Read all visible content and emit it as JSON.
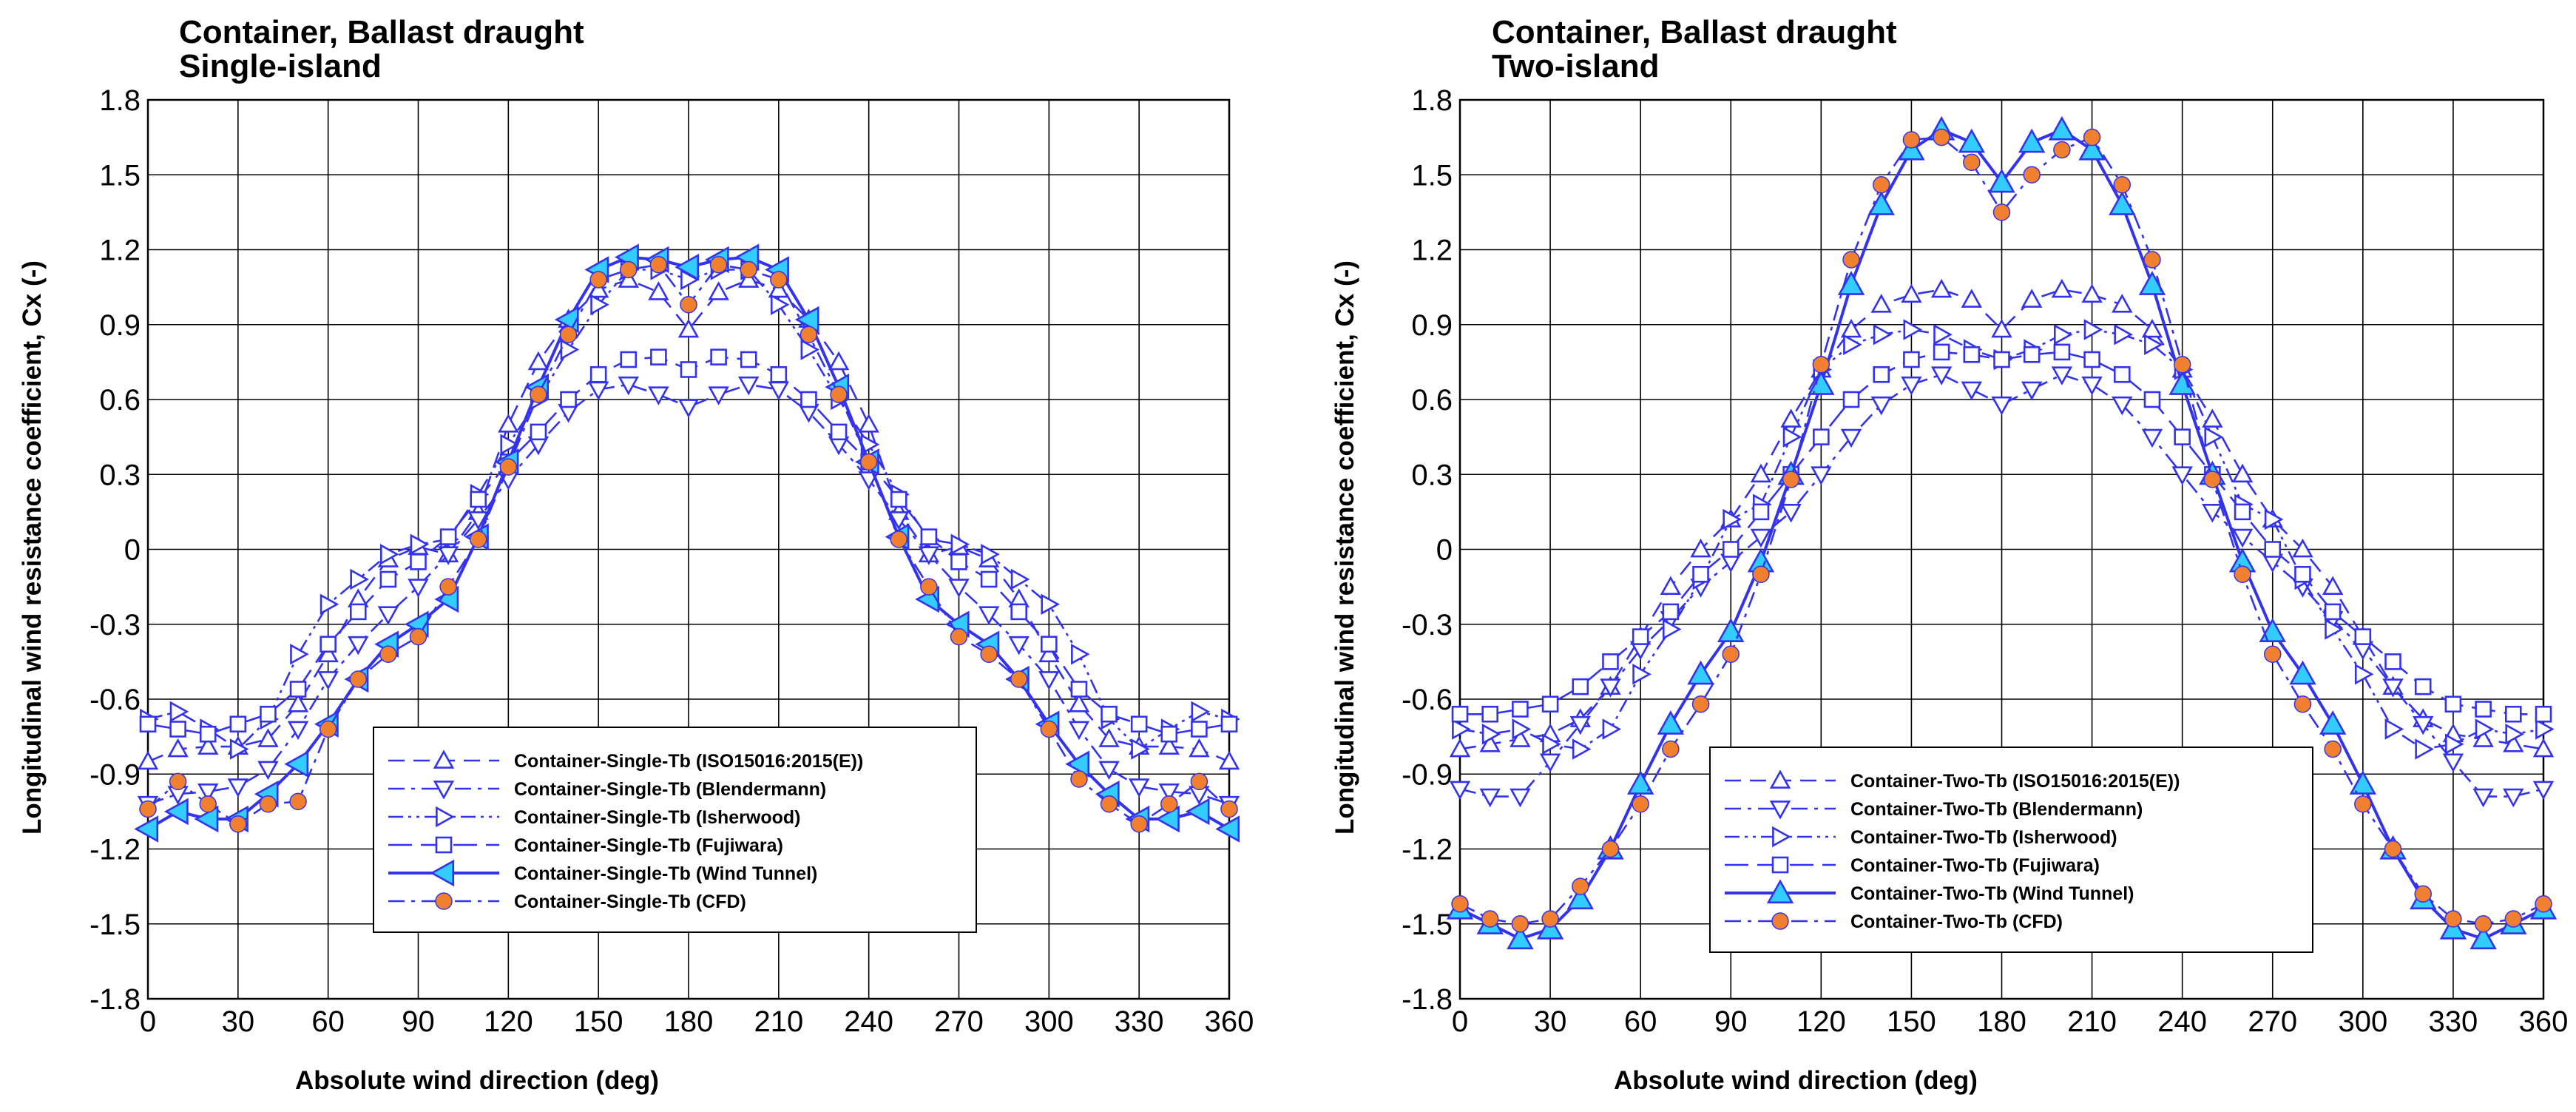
{
  "colors": {
    "series": "#3333ee",
    "cfd_marker": "#f08030",
    "wind_marker": "#33ccff",
    "grid": "#000000"
  },
  "chart_data": [
    {
      "type": "line",
      "title_line1": "Container, Ballast draught",
      "title_line2": "Single-island",
      "xlabel": "Absolute wind direction (deg)",
      "ylabel": "Longitudinal wind resistance coefficient, Cx (-)",
      "xlim": [
        0,
        360
      ],
      "ylim": [
        -1.8,
        1.8
      ],
      "xticks": [
        "0",
        "30",
        "60",
        "90",
        "120",
        "150",
        "180",
        "210",
        "240",
        "270",
        "300",
        "330",
        "360"
      ],
      "yticks": [
        "1.8",
        "1.5",
        "1.2",
        "0.9",
        "0.6",
        "0.3",
        "0",
        "-0.3",
        "-0.6",
        "-0.9",
        "-1.2",
        "-1.5",
        "-1.8"
      ],
      "legend_position": "bottom-center",
      "series": [
        {
          "name": "Container-Single-Tb (ISO15016:2015(E))",
          "marker": "triangle-up",
          "dash": "dashed",
          "x": [
            0,
            10,
            20,
            30,
            40,
            50,
            60,
            70,
            80,
            90,
            100,
            110,
            120,
            130,
            140,
            150,
            160,
            170,
            180,
            190,
            200,
            210,
            220,
            230,
            240,
            250,
            260,
            270,
            280,
            290,
            300,
            310,
            320,
            330,
            340,
            350,
            360
          ],
          "y": [
            -0.85,
            -0.8,
            -0.79,
            -0.79,
            -0.76,
            -0.62,
            -0.42,
            -0.2,
            -0.04,
            0.01,
            -0.02,
            0.15,
            0.5,
            0.75,
            0.92,
            1.04,
            1.08,
            1.03,
            0.88,
            1.03,
            1.08,
            1.04,
            0.92,
            0.75,
            0.5,
            0.15,
            -0.02,
            0.01,
            -0.04,
            -0.2,
            -0.42,
            -0.62,
            -0.76,
            -0.79,
            -0.79,
            -0.8,
            -0.85
          ]
        },
        {
          "name": "Container-Single-Tb (Blendermann)",
          "marker": "triangle-down",
          "dash": "dashdot",
          "x": [
            0,
            10,
            20,
            30,
            40,
            50,
            60,
            70,
            80,
            90,
            100,
            110,
            120,
            130,
            140,
            150,
            160,
            170,
            180,
            190,
            200,
            210,
            220,
            230,
            240,
            250,
            260,
            270,
            280,
            290,
            300,
            310,
            320,
            330,
            340,
            350,
            360
          ],
          "y": [
            -1.02,
            -0.98,
            -0.97,
            -0.95,
            -0.88,
            -0.72,
            -0.52,
            -0.38,
            -0.26,
            -0.15,
            -0.02,
            0.12,
            0.28,
            0.42,
            0.55,
            0.64,
            0.66,
            0.62,
            0.57,
            0.62,
            0.66,
            0.64,
            0.55,
            0.42,
            0.28,
            0.12,
            -0.02,
            -0.15,
            -0.26,
            -0.38,
            -0.52,
            -0.72,
            -0.88,
            -0.95,
            -0.97,
            -0.98,
            -1.02
          ]
        },
        {
          "name": "Container-Single-Tb (Isherwood)",
          "marker": "triangle-right",
          "dash": "dashdotdot",
          "x": [
            0,
            10,
            20,
            30,
            40,
            50,
            60,
            70,
            80,
            90,
            100,
            110,
            120,
            130,
            140,
            150,
            160,
            170,
            180,
            190,
            200,
            210,
            220,
            230,
            240,
            250,
            260,
            270,
            280,
            290,
            300,
            310,
            320,
            330,
            340,
            350,
            360
          ],
          "y": [
            -0.68,
            -0.65,
            -0.72,
            -0.8,
            -0.68,
            -0.42,
            -0.22,
            -0.12,
            -0.02,
            0.02,
            0.04,
            0.22,
            0.42,
            0.6,
            0.8,
            0.98,
            1.12,
            1.12,
            1.08,
            1.12,
            1.12,
            0.98,
            0.8,
            0.6,
            0.42,
            0.22,
            0.04,
            0.02,
            -0.02,
            -0.12,
            -0.22,
            -0.42,
            -0.68,
            -0.8,
            -0.72,
            -0.65,
            -0.68
          ]
        },
        {
          "name": "Container-Single-Tb (Fujiwara)",
          "marker": "square",
          "dash": "longdash",
          "x": [
            0,
            10,
            20,
            30,
            40,
            50,
            60,
            70,
            80,
            90,
            100,
            110,
            120,
            130,
            140,
            150,
            160,
            170,
            180,
            190,
            200,
            210,
            220,
            230,
            240,
            250,
            260,
            270,
            280,
            290,
            300,
            310,
            320,
            330,
            340,
            350,
            360
          ],
          "y": [
            -0.7,
            -0.72,
            -0.74,
            -0.7,
            -0.66,
            -0.56,
            -0.38,
            -0.25,
            -0.12,
            -0.05,
            0.05,
            0.2,
            0.35,
            0.47,
            0.6,
            0.7,
            0.76,
            0.77,
            0.72,
            0.77,
            0.76,
            0.7,
            0.6,
            0.47,
            0.35,
            0.2,
            0.05,
            -0.05,
            -0.12,
            -0.25,
            -0.38,
            -0.56,
            -0.66,
            -0.7,
            -0.74,
            -0.72,
            -0.7
          ]
        },
        {
          "name": "Container-Single-Tb (Wind Tunnel)",
          "marker": "triangle-left",
          "dash": "solid",
          "x": [
            0,
            10,
            20,
            30,
            40,
            50,
            60,
            70,
            80,
            90,
            100,
            110,
            120,
            130,
            140,
            150,
            160,
            170,
            180,
            190,
            200,
            210,
            220,
            230,
            240,
            250,
            260,
            270,
            280,
            290,
            300,
            310,
            320,
            330,
            340,
            350,
            360
          ],
          "y": [
            -1.12,
            -1.05,
            -1.08,
            -1.08,
            -0.98,
            -0.86,
            -0.7,
            -0.52,
            -0.38,
            -0.3,
            -0.2,
            0.05,
            0.35,
            0.65,
            0.92,
            1.12,
            1.17,
            1.16,
            1.13,
            1.16,
            1.17,
            1.12,
            0.92,
            0.65,
            0.35,
            0.05,
            -0.2,
            -0.3,
            -0.38,
            -0.52,
            -0.7,
            -0.86,
            -0.98,
            -1.08,
            -1.08,
            -1.05,
            -1.12
          ]
        },
        {
          "name": "Container-Single-Tb (CFD)",
          "marker": "circle",
          "dash": "dashdot",
          "x": [
            0,
            10,
            20,
            30,
            40,
            50,
            60,
            70,
            80,
            90,
            100,
            110,
            120,
            130,
            140,
            150,
            160,
            170,
            180,
            190,
            200,
            210,
            220,
            230,
            240,
            250,
            260,
            270,
            280,
            290,
            300,
            310,
            320,
            330,
            340,
            350,
            360
          ],
          "y": [
            -1.04,
            -0.93,
            -1.02,
            -1.1,
            -1.02,
            -1.01,
            -0.72,
            -0.52,
            -0.42,
            -0.35,
            -0.15,
            0.04,
            0.33,
            0.62,
            0.86,
            1.08,
            1.12,
            1.14,
            0.98,
            1.14,
            1.12,
            1.08,
            0.86,
            0.62,
            0.35,
            0.04,
            -0.15,
            -0.35,
            -0.42,
            -0.52,
            -0.72,
            -0.92,
            -1.02,
            -1.1,
            -1.02,
            -0.93,
            -1.04
          ]
        }
      ]
    },
    {
      "type": "line",
      "title_line1": "Container, Ballast draught",
      "title_line2": "Two-island",
      "xlabel": "Absolute wind direction (deg)",
      "ylabel": "Longitudinal wind resistance coefficient, Cx (-)",
      "xlim": [
        0,
        360
      ],
      "ylim": [
        -1.8,
        1.8
      ],
      "xticks": [
        "0",
        "30",
        "60",
        "90",
        "120",
        "150",
        "180",
        "210",
        "240",
        "270",
        "300",
        "330",
        "360"
      ],
      "yticks": [
        "1.8",
        "1.5",
        "1.2",
        "0.9",
        "0.6",
        "0.3",
        "0",
        "-0.3",
        "-0.6",
        "-0.9",
        "-1.2",
        "-1.5",
        "-1.8"
      ],
      "legend_position": "bottom-center",
      "series": [
        {
          "name": "Container-Two-Tb (ISO15016:2015(E))",
          "marker": "triangle-up",
          "dash": "dashed",
          "x": [
            0,
            10,
            20,
            30,
            40,
            50,
            60,
            70,
            80,
            90,
            100,
            110,
            120,
            130,
            140,
            150,
            160,
            170,
            180,
            190,
            200,
            210,
            220,
            230,
            240,
            250,
            260,
            270,
            280,
            290,
            300,
            310,
            320,
            330,
            340,
            350,
            360
          ],
          "y": [
            -0.8,
            -0.78,
            -0.76,
            -0.74,
            -0.68,
            -0.55,
            -0.35,
            -0.15,
            0.0,
            0.12,
            0.3,
            0.52,
            0.72,
            0.88,
            0.98,
            1.02,
            1.04,
            1.0,
            0.88,
            1.0,
            1.04,
            1.02,
            0.98,
            0.88,
            0.72,
            0.52,
            0.3,
            0.12,
            0.0,
            -0.15,
            -0.35,
            -0.55,
            -0.68,
            -0.74,
            -0.76,
            -0.78,
            -0.8
          ]
        },
        {
          "name": "Container-Two-Tb (Blendermann)",
          "marker": "triangle-down",
          "dash": "dashdot",
          "x": [
            0,
            10,
            20,
            30,
            40,
            50,
            60,
            70,
            80,
            90,
            100,
            110,
            120,
            130,
            140,
            150,
            160,
            170,
            180,
            190,
            200,
            210,
            220,
            230,
            240,
            250,
            260,
            270,
            280,
            290,
            300,
            310,
            320,
            330,
            340,
            350,
            360
          ],
          "y": [
            -0.96,
            -0.99,
            -0.99,
            -0.85,
            -0.7,
            -0.55,
            -0.4,
            -0.28,
            -0.15,
            -0.05,
            0.05,
            0.15,
            0.3,
            0.45,
            0.58,
            0.66,
            0.7,
            0.64,
            0.58,
            0.64,
            0.7,
            0.66,
            0.58,
            0.45,
            0.3,
            0.15,
            0.05,
            -0.05,
            -0.15,
            -0.28,
            -0.4,
            -0.55,
            -0.7,
            -0.85,
            -0.99,
            -0.99,
            -0.96
          ]
        },
        {
          "name": "Container-Two-Tb (Isherwood)",
          "marker": "triangle-right",
          "dash": "dashdotdot",
          "x": [
            0,
            10,
            20,
            30,
            40,
            50,
            60,
            70,
            80,
            90,
            100,
            110,
            120,
            130,
            140,
            150,
            160,
            170,
            180,
            190,
            200,
            210,
            220,
            230,
            240,
            250,
            260,
            270,
            280,
            290,
            300,
            310,
            320,
            330,
            340,
            350,
            360
          ],
          "y": [
            -0.72,
            -0.74,
            -0.72,
            -0.78,
            -0.8,
            -0.72,
            -0.5,
            -0.32,
            -0.12,
            0.12,
            0.18,
            0.45,
            0.72,
            0.82,
            0.86,
            0.88,
            0.86,
            0.8,
            0.76,
            0.8,
            0.86,
            0.88,
            0.86,
            0.82,
            0.72,
            0.45,
            0.18,
            0.12,
            -0.12,
            -0.32,
            -0.5,
            -0.72,
            -0.8,
            -0.78,
            -0.72,
            -0.74,
            -0.72
          ]
        },
        {
          "name": "Container-Two-Tb (Fujiwara)",
          "marker": "square",
          "dash": "longdash",
          "x": [
            0,
            10,
            20,
            30,
            40,
            50,
            60,
            70,
            80,
            90,
            100,
            110,
            120,
            130,
            140,
            150,
            160,
            170,
            180,
            190,
            200,
            210,
            220,
            230,
            240,
            250,
            260,
            270,
            280,
            290,
            300,
            310,
            320,
            330,
            340,
            350,
            360
          ],
          "y": [
            -0.66,
            -0.66,
            -0.64,
            -0.62,
            -0.55,
            -0.45,
            -0.35,
            -0.25,
            -0.1,
            0.0,
            0.15,
            0.3,
            0.45,
            0.6,
            0.7,
            0.76,
            0.79,
            0.78,
            0.76,
            0.78,
            0.79,
            0.76,
            0.7,
            0.6,
            0.45,
            0.3,
            0.15,
            0.0,
            -0.1,
            -0.25,
            -0.35,
            -0.45,
            -0.55,
            -0.62,
            -0.64,
            -0.66,
            -0.66
          ]
        },
        {
          "name": "Container-Two-Tb (Wind Tunnel)",
          "marker": "triangle-up-filled",
          "dash": "solid",
          "x": [
            0,
            10,
            20,
            30,
            40,
            50,
            60,
            70,
            80,
            90,
            100,
            110,
            120,
            130,
            140,
            150,
            160,
            170,
            180,
            190,
            200,
            210,
            220,
            230,
            240,
            250,
            260,
            270,
            280,
            290,
            300,
            310,
            320,
            330,
            340,
            350,
            360
          ],
          "y": [
            -1.44,
            -1.5,
            -1.56,
            -1.52,
            -1.4,
            -1.2,
            -0.94,
            -0.7,
            -0.5,
            -0.33,
            -0.05,
            0.3,
            0.66,
            1.06,
            1.38,
            1.6,
            1.68,
            1.63,
            1.47,
            1.63,
            1.68,
            1.6,
            1.38,
            1.06,
            0.66,
            0.3,
            -0.05,
            -0.33,
            -0.5,
            -0.7,
            -0.94,
            -1.2,
            -1.4,
            -1.52,
            -1.56,
            -1.5,
            -1.44
          ]
        },
        {
          "name": "Container-Two-Tb (CFD)",
          "marker": "circle",
          "dash": "dashdot",
          "x": [
            0,
            10,
            20,
            30,
            40,
            50,
            60,
            70,
            80,
            90,
            100,
            110,
            120,
            130,
            140,
            150,
            160,
            170,
            180,
            190,
            200,
            210,
            220,
            230,
            240,
            250,
            260,
            270,
            280,
            290,
            300,
            310,
            320,
            330,
            340,
            350,
            360
          ],
          "y": [
            -1.42,
            -1.48,
            -1.5,
            -1.48,
            -1.35,
            -1.2,
            -1.02,
            -0.8,
            -0.62,
            -0.42,
            -0.1,
            0.28,
            0.74,
            1.16,
            1.46,
            1.64,
            1.65,
            1.55,
            1.35,
            1.5,
            1.6,
            1.65,
            1.46,
            1.16,
            0.74,
            0.28,
            -0.1,
            -0.42,
            -0.62,
            -0.8,
            -1.02,
            -1.2,
            -1.38,
            -1.48,
            -1.5,
            -1.48,
            -1.42
          ]
        }
      ]
    }
  ]
}
